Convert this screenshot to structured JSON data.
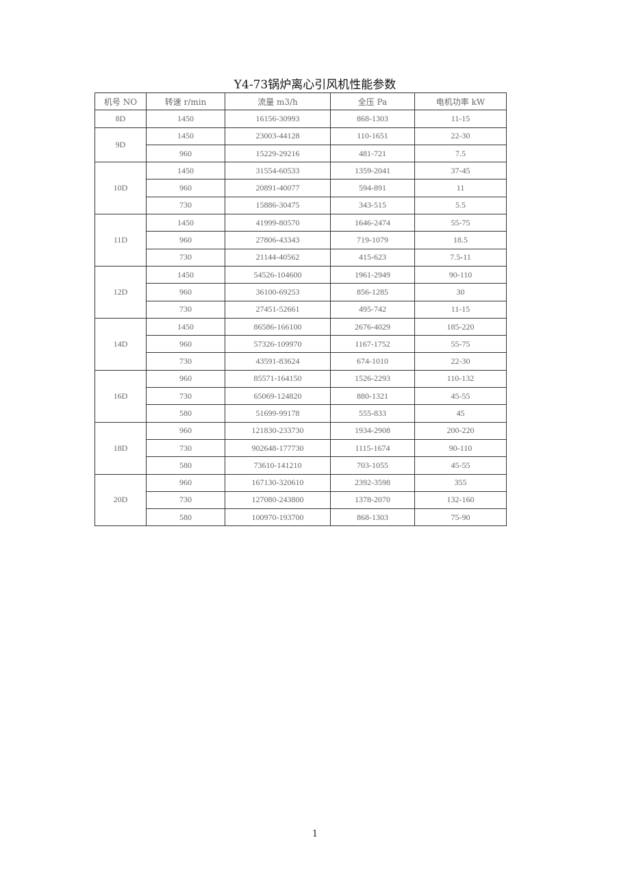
{
  "title": "Y4-73锅炉离心引风机性能参数",
  "table": {
    "headers": [
      "机号 NO",
      "转速 r/min",
      "流量 m3/h",
      "全压 Pa",
      "电机功率 kW"
    ],
    "groups": [
      {
        "model": "8D",
        "rows": [
          [
            "1450",
            "16156-30993",
            "868-1303",
            "11-15"
          ]
        ]
      },
      {
        "model": "9D",
        "rows": [
          [
            "1450",
            "23003-44128",
            "110-1651",
            "22-30"
          ],
          [
            "960",
            "15229-29216",
            "481-721",
            "7.5"
          ]
        ]
      },
      {
        "model": "10D",
        "rows": [
          [
            "1450",
            "31554-60533",
            "1359-2041",
            "37-45"
          ],
          [
            "960",
            "20891-40077",
            "594-891",
            "11"
          ],
          [
            "730",
            "15886-30475",
            "343-515",
            "5.5"
          ]
        ]
      },
      {
        "model": "11D",
        "rows": [
          [
            "1450",
            "41999-80570",
            "1646-2474",
            "55-75"
          ],
          [
            "960",
            "27806-43343",
            "719-1079",
            "18.5"
          ],
          [
            "730",
            "21144-40562",
            "415-623",
            "7.5-11"
          ]
        ]
      },
      {
        "model": "12D",
        "rows": [
          [
            "1450",
            "54526-104600",
            "1961-2949",
            "90-110"
          ],
          [
            "960",
            "36100-69253",
            "856-1285",
            "30"
          ],
          [
            "730",
            "27451-52661",
            "495-742",
            "11-15"
          ]
        ]
      },
      {
        "model": "14D",
        "rows": [
          [
            "1450",
            "86586-166100",
            "2676-4029",
            "185-220"
          ],
          [
            "960",
            "57326-109970",
            "1167-1752",
            "55-75"
          ],
          [
            "730",
            "43591-83624",
            "674-1010",
            "22-30"
          ]
        ]
      },
      {
        "model": "16D",
        "rows": [
          [
            "960",
            "85571-164150",
            "1526-2293",
            "110-132"
          ],
          [
            "730",
            "65069-124820",
            "880-1321",
            "45-55"
          ],
          [
            "580",
            "51699-99178",
            "555-833",
            "45"
          ]
        ]
      },
      {
        "model": "18D",
        "rows": [
          [
            "960",
            "121830-233730",
            "1934-2908",
            "200-220"
          ],
          [
            "730",
            "902648-177730",
            "1115-1674",
            "90-110"
          ],
          [
            "580",
            "73610-141210",
            "703-1055",
            "45-55"
          ]
        ]
      },
      {
        "model": "20D",
        "rows": [
          [
            "960",
            "167130-320610",
            "2392-3598",
            "355"
          ],
          [
            "730",
            "127080-243800",
            "1378-2070",
            "132-160"
          ],
          [
            "580",
            "100970-193700",
            "868-1303",
            "75-90"
          ]
        ]
      }
    ]
  },
  "page_number": "1"
}
